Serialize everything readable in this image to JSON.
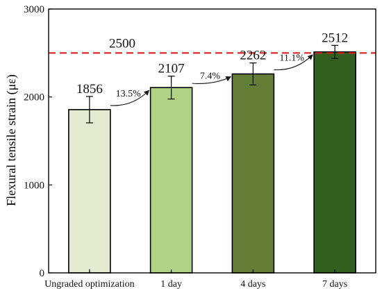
{
  "chart_data": {
    "type": "bar",
    "ylabel": "Flexural tensile strain (με)",
    "xlabel": "",
    "ylim": [
      0,
      3000
    ],
    "yticks": [
      0,
      1000,
      2000,
      3000
    ],
    "categories": [
      "Ungraded optimization",
      "1 day",
      "4 days",
      "7 days"
    ],
    "values": [
      1856,
      2107,
      2262,
      2512
    ],
    "value_labels": [
      "1856",
      "2107",
      "2262",
      "2512"
    ],
    "errors": [
      150,
      130,
      125,
      75
    ],
    "colors": [
      "#e2ebd0",
      "#b0d286",
      "#637e37",
      "#305f1e"
    ],
    "grid": false,
    "reference_line": {
      "value": 2500,
      "label": "2500",
      "color": "#e02020"
    },
    "increases": [
      {
        "from": 0,
        "to": 1,
        "label": "13.5%"
      },
      {
        "from": 1,
        "to": 2,
        "label": "7.4%"
      },
      {
        "from": 2,
        "to": 3,
        "label": "11.1%"
      }
    ]
  }
}
